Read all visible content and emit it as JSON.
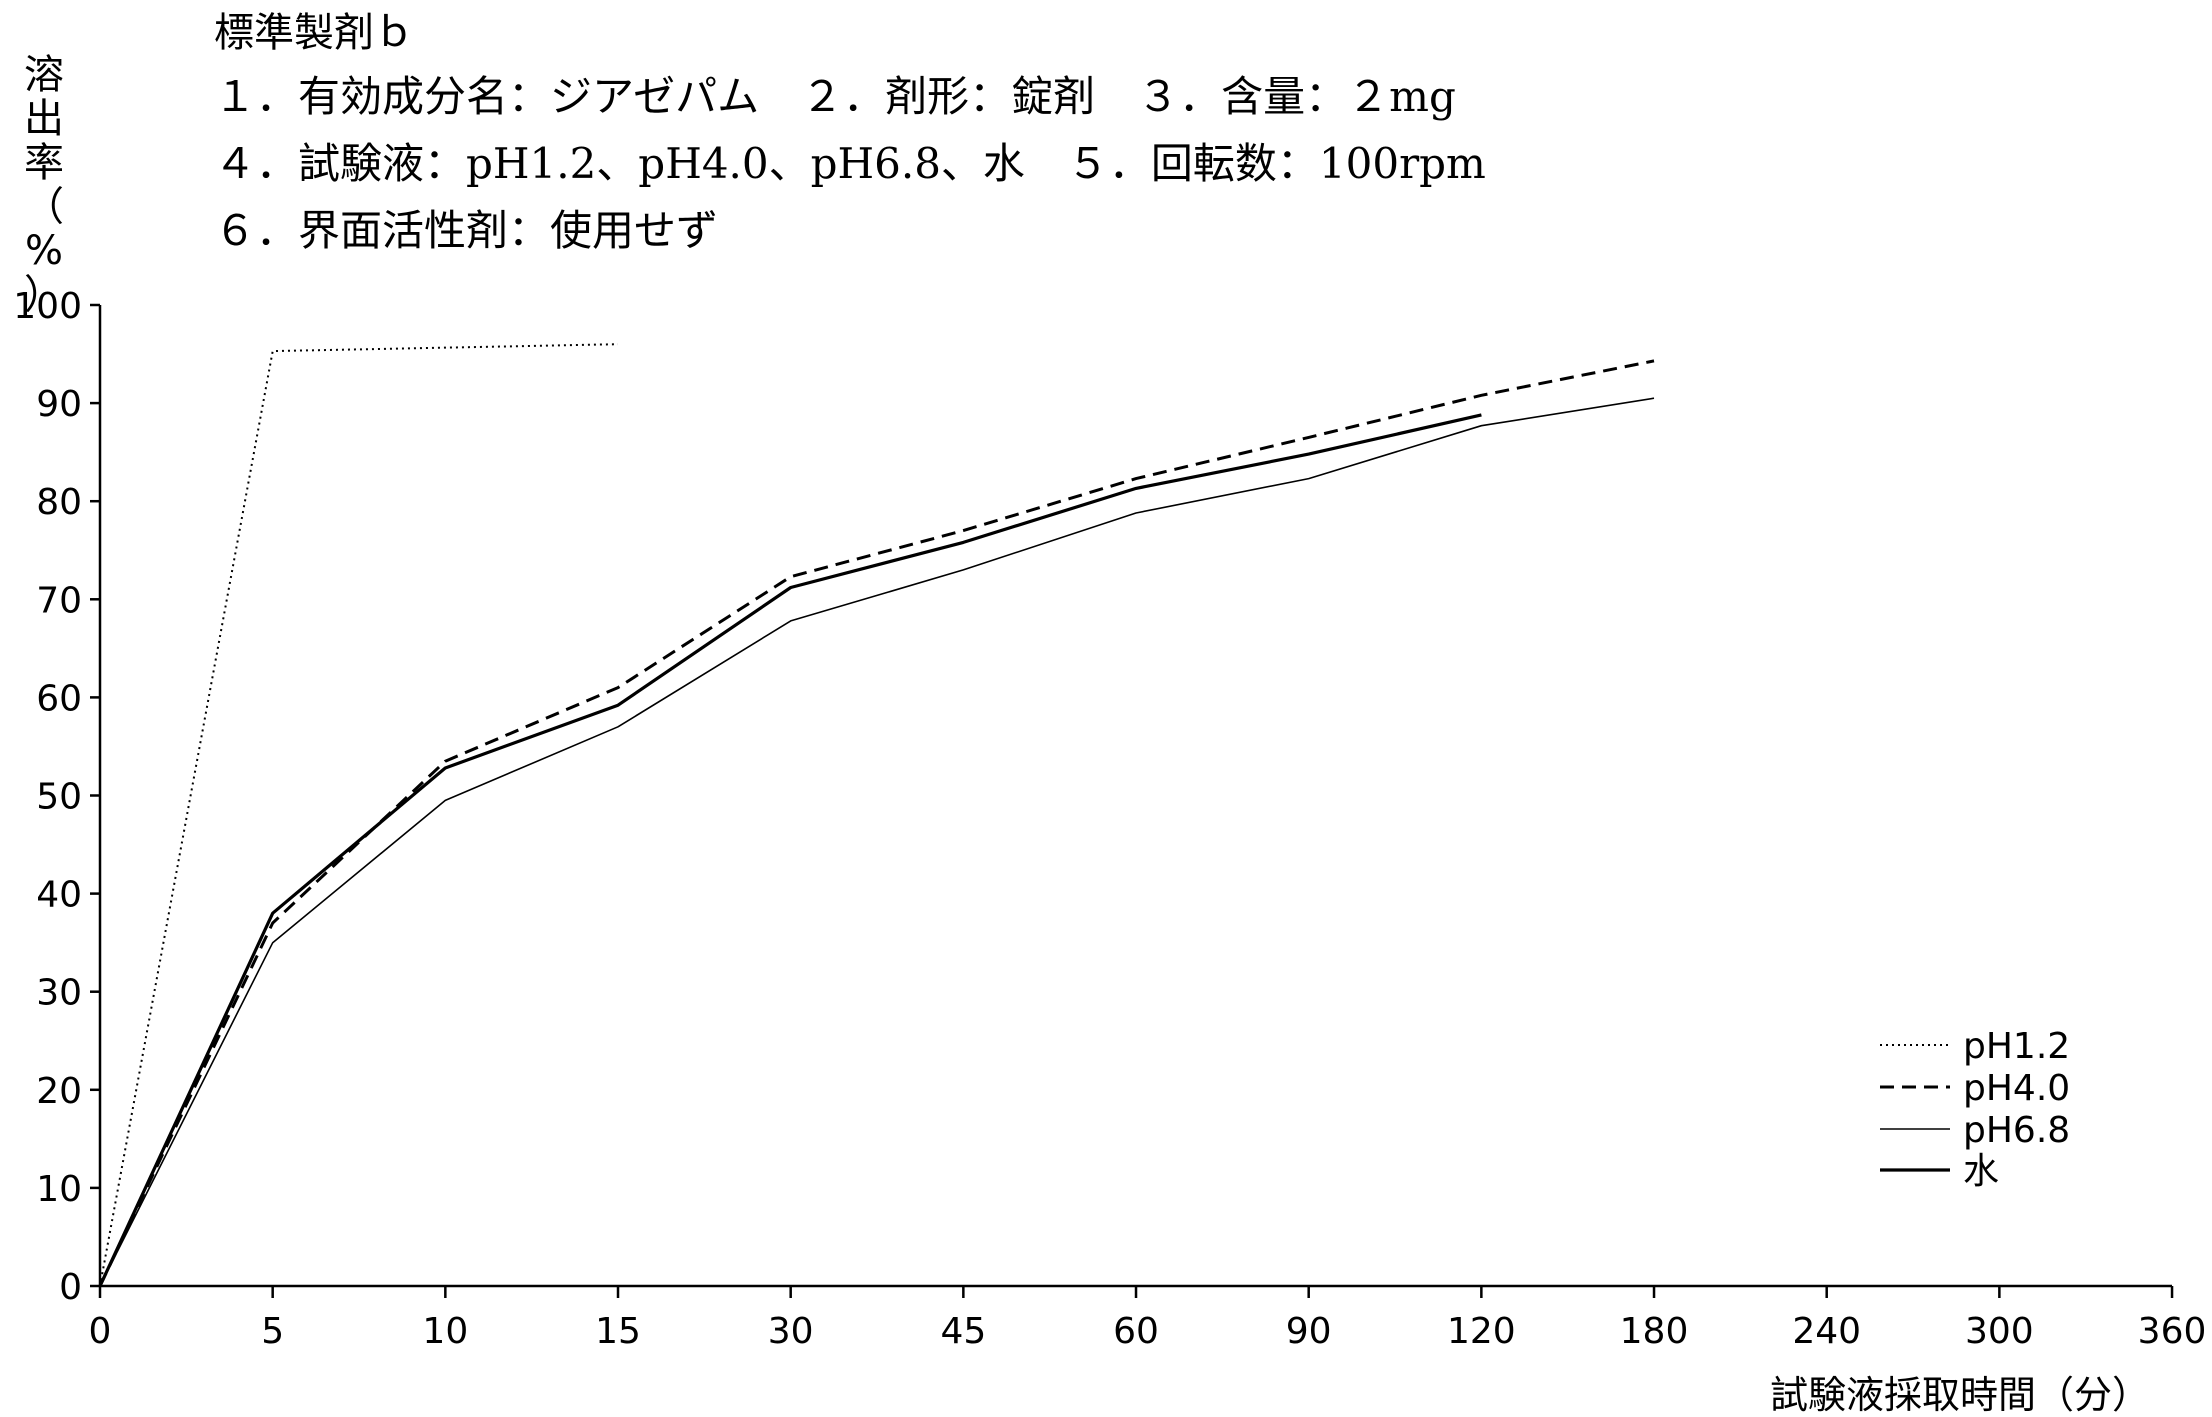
{
  "chart_data": {
    "type": "line",
    "title": "標準製剤ｂ",
    "info_lines": [
      "１．有効成分名：ジアゼパム　２．剤形：錠剤　３．含量：２mg",
      "４．試験液：pH1.2、pH4.0、pH6.8、水　５．回転数：100rpm",
      "６．界面活性剤：使用せず"
    ],
    "ylabel": "溶出率（%）",
    "xlabel": "試験液採取時間（分）",
    "x_ticks": [
      "0",
      "5",
      "10",
      "15",
      "30",
      "45",
      "60",
      "90",
      "120",
      "180",
      "240",
      "300",
      "360"
    ],
    "y_ticks": [
      "0",
      "10",
      "20",
      "30",
      "40",
      "50",
      "60",
      "70",
      "80",
      "90",
      "100"
    ],
    "ylim": [
      0,
      100
    ],
    "legend_position": "bottom-right",
    "series": [
      {
        "name": "pH1.2",
        "style": "dotted",
        "x": [
          0,
          5,
          15
        ],
        "values": [
          0,
          95.3,
          96
        ]
      },
      {
        "name": "pH4.0",
        "style": "dashed",
        "x": [
          0,
          5,
          10,
          15,
          30,
          45,
          60,
          90,
          120,
          180
        ],
        "values": [
          0,
          37,
          53.5,
          61,
          72.3,
          77,
          82.3,
          86.5,
          90.8,
          94.3
        ]
      },
      {
        "name": "pH6.8",
        "style": "thin",
        "x": [
          0,
          5,
          10,
          15,
          30,
          45,
          60,
          90,
          120,
          180
        ],
        "values": [
          0,
          35,
          49.5,
          57,
          67.8,
          73,
          78.8,
          82.3,
          87.7,
          90.5
        ]
      },
      {
        "name": "水",
        "style": "solid",
        "x": [
          0,
          5,
          10,
          15,
          30,
          45,
          60,
          90,
          120
        ],
        "values": [
          0,
          38,
          52.8,
          59.2,
          71.2,
          75.8,
          81.3,
          84.8,
          88.8
        ]
      }
    ]
  }
}
